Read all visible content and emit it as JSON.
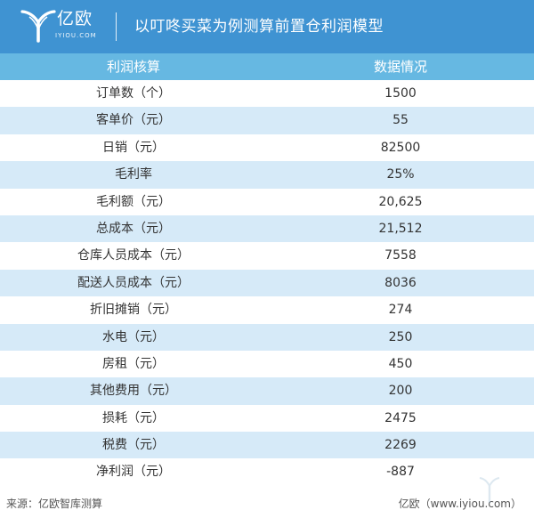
{
  "brand": {
    "name": "亿欧",
    "url": "IYIOU.COM"
  },
  "title": "以叮咚买菜为例测算前置仓利润模型",
  "table": {
    "headers": [
      "利润核算",
      "数据情况"
    ],
    "rows": [
      [
        "订单数（个）",
        "1500"
      ],
      [
        "客单价（元）",
        "55"
      ],
      [
        "日销（元）",
        "82500"
      ],
      [
        "毛利率",
        "25%"
      ],
      [
        "毛利额（元）",
        "20,625"
      ],
      [
        "总成本（元）",
        "21,512"
      ],
      [
        "仓库人员成本（元）",
        "7558"
      ],
      [
        "配送人员成本（元）",
        "8036"
      ],
      [
        "折旧摊销（元）",
        "274"
      ],
      [
        "水电（元）",
        "250"
      ],
      [
        "房租（元）",
        "450"
      ],
      [
        "其他费用（元）",
        "200"
      ],
      [
        "损耗（元）",
        "2475"
      ],
      [
        "税费（元）",
        "2269"
      ],
      [
        "净利润（元）",
        "-887"
      ]
    ]
  },
  "footer": {
    "source": "来源：亿欧智库测算",
    "credit": "亿欧（www.iyiou.com）"
  },
  "colors": {
    "banner": "#3f93d2",
    "header": "#66b8e2",
    "stripe": "#d6eaf8"
  }
}
